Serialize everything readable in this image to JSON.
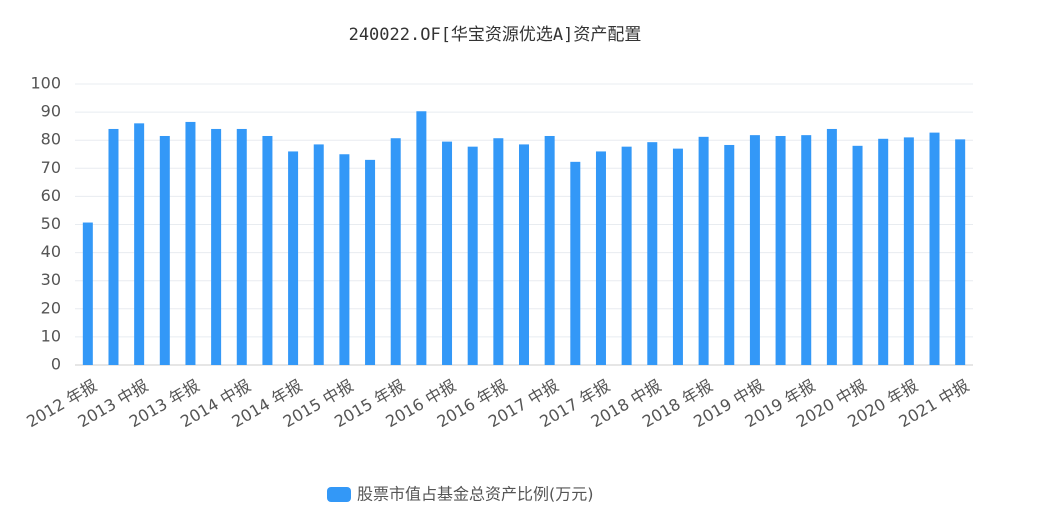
{
  "chart_data": {
    "type": "bar",
    "title": "240022.OF[华宝资源优选A]资产配置",
    "categories": [
      "2012 年报",
      null,
      "2013 中报",
      null,
      "2013 年报",
      null,
      "2014 中报",
      null,
      "2014 年报",
      null,
      "2015 中报",
      null,
      "2015 年报",
      null,
      "2016 中报",
      null,
      "2016 年报",
      null,
      "2017 中报",
      null,
      "2017 年报",
      null,
      "2018 中报",
      null,
      "2018 年报",
      null,
      "2019 中报",
      null,
      "2019 年报",
      null,
      "2020 中报",
      null,
      "2020 年报",
      null,
      "2021 中报"
    ],
    "series": [
      {
        "name": "股票市值占基金总资产比例(万元)",
        "color": "#3398f7",
        "values": [
          50.7,
          84,
          86,
          81.5,
          86.5,
          84,
          84,
          81.5,
          76,
          78.5,
          75,
          73,
          80.7,
          90.3,
          79.5,
          77.7,
          80.7,
          78.5,
          81.5,
          72.3,
          76,
          77.7,
          79.3,
          77,
          81.2,
          78.3,
          81.8,
          81.5,
          81.8,
          84,
          78,
          80.5,
          81,
          82.7,
          80.3
        ]
      }
    ],
    "ylim": [
      0,
      100
    ],
    "yticks": [
      0,
      10,
      20,
      30,
      40,
      50,
      60,
      70,
      80,
      90,
      100
    ],
    "grid": true
  }
}
